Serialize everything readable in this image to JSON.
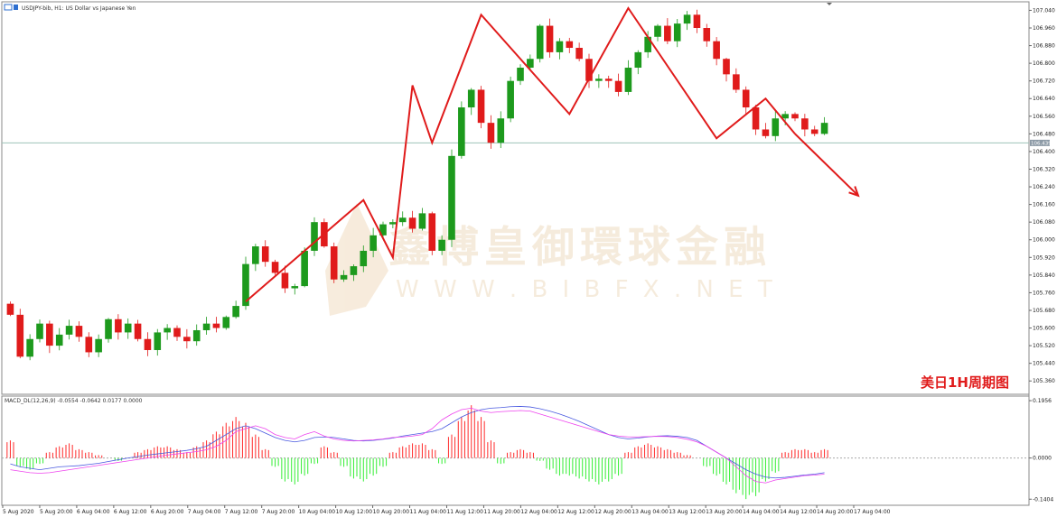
{
  "header": {
    "symbol_title": "USDJPY-bib, H1:  US Dollar vs Japanese Yen"
  },
  "price_badge": "106.439",
  "chart_title": "美日1H周期图",
  "watermark": {
    "cn": "鑫博皇御環球金融",
    "en": "W W W . B I B F X . N E T"
  },
  "macd_label": "MACD_DL(12,26,9) -0.0554 -0.0642 0.0177 0.0000",
  "colors": {
    "up": "#1d9a1d",
    "down": "#e01b1b",
    "hist_up": "#ff2a2a",
    "hist_down": "#33ee33",
    "macd_line": "#4a5ae0",
    "signal_line": "#ee44ee",
    "annotation": "#e01b1b",
    "bid_line": "#9ec3b8"
  },
  "chart_data": {
    "type": "candlestick",
    "price_axis": {
      "ticks": [
        "107.040",
        "106.960",
        "106.880",
        "106.800",
        "106.720",
        "106.640",
        "106.560",
        "106.480",
        "106.400",
        "106.320",
        "106.240",
        "106.160",
        "106.080",
        "106.000",
        "105.920",
        "105.840",
        "105.760",
        "105.680",
        "105.600",
        "105.520",
        "105.440",
        "105.360"
      ],
      "range": [
        105.32,
        107.05
      ]
    },
    "current_price": 106.439,
    "time_axis": [
      "5 Aug 2020",
      "5 Aug 20:00",
      "6 Aug 04:00",
      "6 Aug 12:00",
      "6 Aug 20:00",
      "7 Aug 04:00",
      "7 Aug 12:00",
      "7 Aug 20:00",
      "10 Aug 04:00",
      "10 Aug 12:00",
      "10 Aug 20:00",
      "11 Aug 04:00",
      "11 Aug 12:00",
      "11 Aug 20:00",
      "12 Aug 04:00",
      "12 Aug 12:00",
      "12 Aug 20:00",
      "13 Aug 04:00",
      "13 Aug 12:00",
      "13 Aug 20:00",
      "14 Aug 04:00",
      "14 Aug 12:00",
      "14 Aug 20:00",
      "17 Aug 04:00"
    ],
    "close_path": [
      105.66,
      105.47,
      105.55,
      105.62,
      105.52,
      105.57,
      105.61,
      105.56,
      105.49,
      105.55,
      105.64,
      105.58,
      105.62,
      105.55,
      105.5,
      105.58,
      105.6,
      105.56,
      105.54,
      105.59,
      105.62,
      105.6,
      105.65,
      105.7,
      105.89,
      105.97,
      105.9,
      105.85,
      105.78,
      105.79,
      105.95,
      106.08,
      105.97,
      105.82,
      105.84,
      105.88,
      105.95,
      106.02,
      106.07,
      106.08,
      106.1,
      106.05,
      106.12,
      105.95,
      106.0,
      106.38,
      106.6,
      106.68,
      106.53,
      106.44,
      106.55,
      106.72,
      106.78,
      106.82,
      106.97,
      106.85,
      106.9,
      106.87,
      106.82,
      106.72,
      106.73,
      106.72,
      106.67,
      106.78,
      106.85,
      106.92,
      106.97,
      106.9,
      106.98,
      107.02,
      106.96,
      106.9,
      106.82,
      106.75,
      106.68,
      106.6,
      106.5,
      106.47,
      106.55,
      106.57,
      106.55,
      106.5,
      106.48,
      106.53
    ],
    "macd_axis": {
      "ticks": [
        "0.1956",
        "0.0000",
        "-0.1404"
      ],
      "range": [
        -0.155,
        0.205
      ]
    },
    "macd_histogram": [
      0.06,
      -0.03,
      -0.04,
      -0.02,
      0.02,
      0.04,
      0.05,
      0.03,
      0.02,
      0.01,
      0.0,
      -0.01,
      0.0,
      0.02,
      0.03,
      0.04,
      0.04,
      0.03,
      0.02,
      0.04,
      0.06,
      0.09,
      0.12,
      0.14,
      0.12,
      0.08,
      0.03,
      -0.03,
      -0.08,
      -0.09,
      -0.06,
      -0.02,
      0.04,
      0.02,
      -0.03,
      -0.07,
      -0.08,
      -0.06,
      -0.03,
      0.02,
      0.04,
      0.05,
      0.05,
      0.03,
      -0.02,
      0.08,
      0.14,
      0.18,
      0.14,
      0.06,
      -0.02,
      0.02,
      0.03,
      0.02,
      -0.01,
      -0.04,
      -0.06,
      -0.06,
      -0.07,
      -0.08,
      -0.09,
      -0.08,
      -0.06,
      0.02,
      0.04,
      0.05,
      0.04,
      0.03,
      0.02,
      0.01,
      0.0,
      -0.03,
      -0.06,
      -0.09,
      -0.12,
      -0.14,
      -0.13,
      -0.08,
      -0.05,
      0.02,
      0.03,
      0.03,
      0.02,
      0.03
    ],
    "macd_line": [
      -0.02,
      -0.03,
      -0.035,
      -0.04,
      -0.035,
      -0.03,
      -0.028,
      -0.026,
      -0.022,
      -0.018,
      -0.012,
      -0.006,
      0.0,
      0.005,
      0.01,
      0.014,
      0.018,
      0.022,
      0.026,
      0.032,
      0.04,
      0.06,
      0.08,
      0.1,
      0.11,
      0.1,
      0.085,
      0.07,
      0.06,
      0.055,
      0.06,
      0.07,
      0.072,
      0.07,
      0.065,
      0.06,
      0.058,
      0.06,
      0.064,
      0.068,
      0.075,
      0.08,
      0.085,
      0.09,
      0.1,
      0.12,
      0.14,
      0.155,
      0.165,
      0.17,
      0.172,
      0.175,
      0.176,
      0.174,
      0.168,
      0.16,
      0.15,
      0.138,
      0.125,
      0.11,
      0.095,
      0.08,
      0.07,
      0.065,
      0.068,
      0.072,
      0.075,
      0.076,
      0.074,
      0.07,
      0.06,
      0.04,
      0.02,
      0.0,
      -0.02,
      -0.04,
      -0.055,
      -0.065,
      -0.068,
      -0.066,
      -0.062,
      -0.058,
      -0.055,
      -0.05
    ],
    "signal_line": [
      -0.04,
      -0.045,
      -0.05,
      -0.052,
      -0.05,
      -0.045,
      -0.04,
      -0.035,
      -0.03,
      -0.025,
      -0.02,
      -0.015,
      -0.01,
      -0.005,
      0.0,
      0.005,
      0.01,
      0.014,
      0.018,
      0.022,
      0.028,
      0.04,
      0.06,
      0.09,
      0.1,
      0.11,
      0.1,
      0.08,
      0.07,
      0.065,
      0.08,
      0.09,
      0.075,
      0.065,
      0.06,
      0.058,
      0.06,
      0.062,
      0.065,
      0.07,
      0.072,
      0.075,
      0.08,
      0.1,
      0.13,
      0.15,
      0.165,
      0.17,
      0.16,
      0.155,
      0.158,
      0.16,
      0.162,
      0.16,
      0.15,
      0.14,
      0.13,
      0.12,
      0.11,
      0.1,
      0.09,
      0.08,
      0.075,
      0.072,
      0.072,
      0.073,
      0.074,
      0.073,
      0.07,
      0.064,
      0.055,
      0.04,
      0.02,
      0.0,
      -0.03,
      -0.06,
      -0.08,
      -0.085,
      -0.075,
      -0.07,
      -0.065,
      -0.06,
      -0.058,
      -0.055
    ]
  }
}
